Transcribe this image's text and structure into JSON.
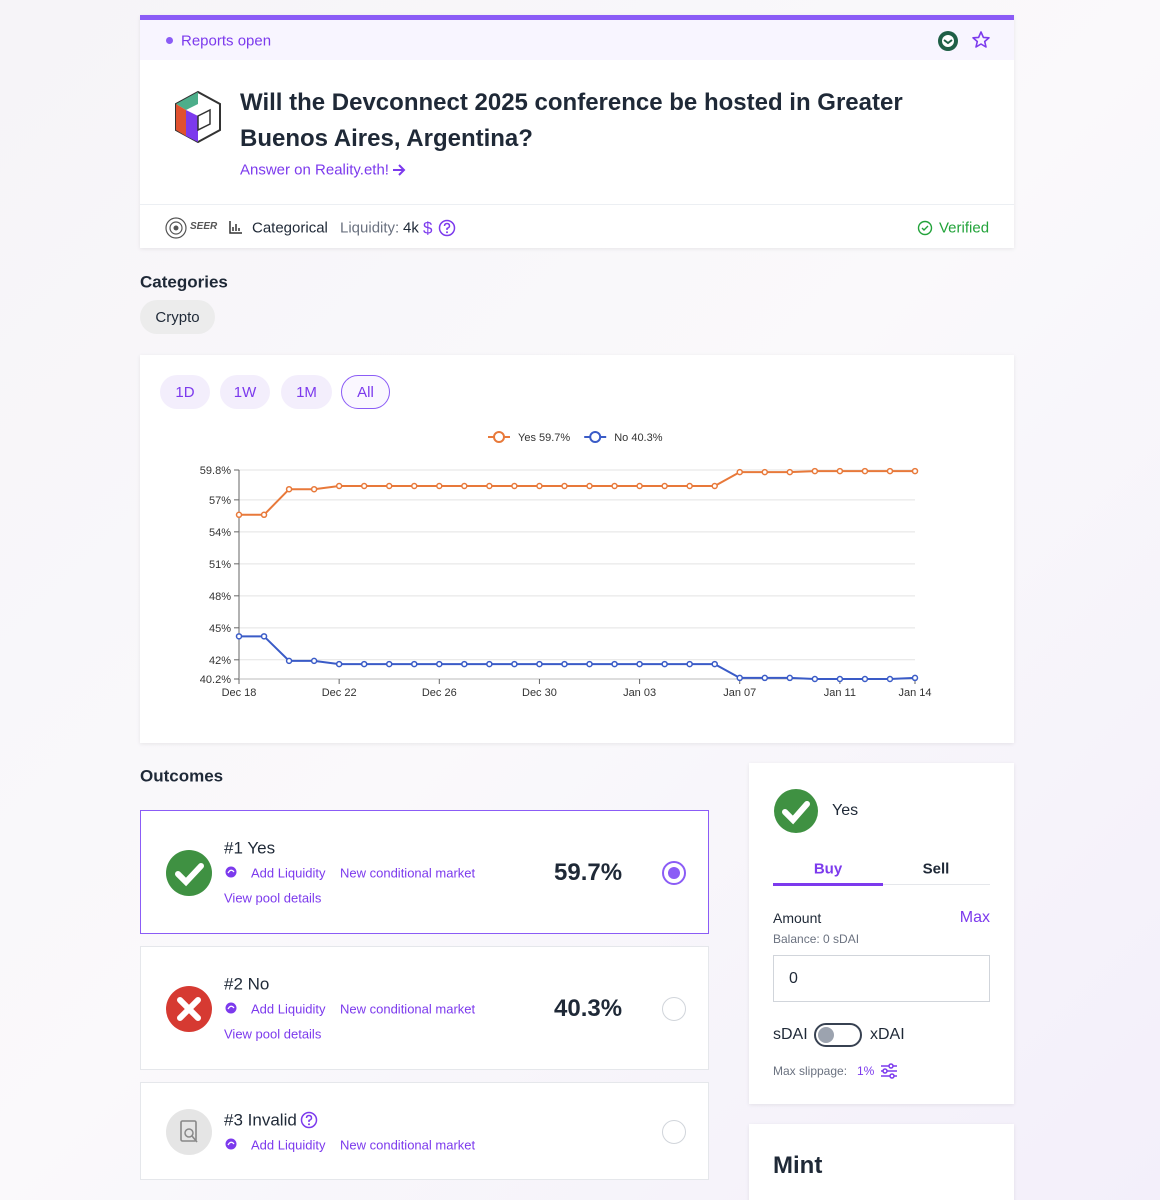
{
  "header": {
    "status": "Reports open",
    "title": "Will the Devconnect 2025 conference be hosted in Greater Buenos Aires, Argentina?",
    "answer_link": "Answer on Reality.eth!"
  },
  "meta": {
    "brand": "SEER",
    "market_type": "Categorical",
    "liquidity_label": "Liquidity:",
    "liquidity_value": "4k",
    "liquidity_unit": "$",
    "verified": "Verified"
  },
  "categories": {
    "title": "Categories",
    "items": [
      "Crypto"
    ]
  },
  "ranges": {
    "buttons": [
      "1D",
      "1W",
      "1M",
      "All"
    ],
    "active_index": 3
  },
  "chart_data": {
    "type": "line",
    "categories": [
      "Dec 18",
      null,
      null,
      null,
      "Dec 22",
      null,
      null,
      null,
      "Dec 26",
      null,
      null,
      null,
      "Dec 30",
      null,
      null,
      null,
      "Jan 03",
      null,
      null,
      null,
      "Jan 07",
      null,
      null,
      null,
      "Jan 11",
      null,
      null,
      "Jan 14"
    ],
    "series": [
      {
        "name": "Yes 59.7%",
        "color": "#e8793a",
        "values": [
          55.6,
          55.6,
          58,
          58,
          58.3,
          58.3,
          58.3,
          58.3,
          58.3,
          58.3,
          58.3,
          58.3,
          58.3,
          58.3,
          58.3,
          58.3,
          58.3,
          58.3,
          58.3,
          58.3,
          59.6,
          59.6,
          59.6,
          59.7,
          59.7,
          59.7,
          59.7,
          59.7
        ]
      },
      {
        "name": "No 40.3%",
        "color": "#3a5bc7",
        "values": [
          44.2,
          44.2,
          41.9,
          41.9,
          41.6,
          41.6,
          41.6,
          41.6,
          41.6,
          41.6,
          41.6,
          41.6,
          41.6,
          41.6,
          41.6,
          41.6,
          41.6,
          41.6,
          41.6,
          41.6,
          40.3,
          40.3,
          40.3,
          40.2,
          40.2,
          40.2,
          40.2,
          40.3
        ]
      }
    ],
    "ylim": [
      40.2,
      59.8
    ],
    "yticks": [
      {
        "value": 40.2,
        "label": "40.2%"
      },
      {
        "value": 42,
        "label": "42%"
      },
      {
        "value": 45,
        "label": "45%"
      },
      {
        "value": 48,
        "label": "48%"
      },
      {
        "value": 51,
        "label": "51%"
      },
      {
        "value": 54,
        "label": "54%"
      },
      {
        "value": 57,
        "label": "57%"
      },
      {
        "value": 59.8,
        "label": "59.8%"
      }
    ],
    "grid": true,
    "legend": "top"
  },
  "outcomes": {
    "title": "Outcomes",
    "items": [
      {
        "rank": "#1",
        "name": "Yes",
        "add_liquidity": "Add Liquidity",
        "new_market": "New conditional market",
        "pool": "View pool details",
        "percent": "59.7%",
        "selected": true
      },
      {
        "rank": "#2",
        "name": "No",
        "add_liquidity": "Add Liquidity",
        "new_market": "New conditional market",
        "pool": "View pool details",
        "percent": "40.3%",
        "selected": false
      },
      {
        "rank": "#3",
        "name": "Invalid",
        "add_liquidity": "Add Liquidity",
        "new_market": "New conditional market",
        "selected": false
      }
    ]
  },
  "trade": {
    "outcome": "Yes",
    "tabs": [
      "Buy",
      "Sell"
    ],
    "amount_label": "Amount",
    "max": "Max",
    "balance": "Balance: 0 sDAI",
    "amount_value": "0",
    "token_left": "sDAI",
    "token_right": "xDAI",
    "slippage_label": "Max slippage:",
    "slippage_value": "1%"
  },
  "mint": {
    "title": "Mint"
  }
}
